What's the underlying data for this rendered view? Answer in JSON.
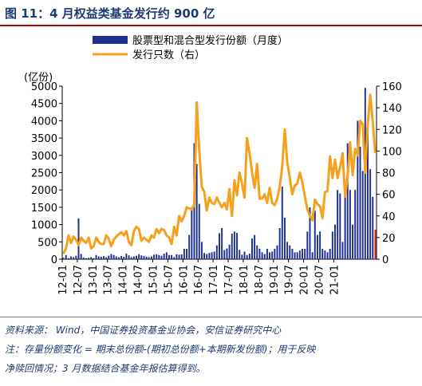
{
  "figure": {
    "title": "图 11：4 月权益类基金发行约 900 亿",
    "source": "资料来源：  Wind，中国证券投资基金业协会，安信证券研究中心",
    "note_line1": "注：存量份额变化 = 期末总份额-(期初总份额+本期新发份额)；用于反映",
    "note_line2": "净赎回情况；3 月数据结合基金年报估算得到。"
  },
  "colors": {
    "bar": "#1f2f8f",
    "bar_last": "#e0202a",
    "line": "#f5a11c",
    "title": "#1f3a73",
    "rule": "#c00000"
  },
  "chart_data": {
    "type": "bar",
    "title": "",
    "left_axis_label": "(亿份)",
    "ylim": [
      0,
      5000
    ],
    "y2lim": [
      0,
      160
    ],
    "yticks": [
      0,
      500,
      1000,
      1500,
      2000,
      2500,
      3000,
      3500,
      4000,
      4500,
      5000
    ],
    "y2ticks": [
      0,
      20,
      40,
      60,
      80,
      100,
      120,
      140,
      160
    ],
    "start": "2012-01",
    "x_tick_labels": [
      "12-01",
      "12-07",
      "13-01",
      "13-07",
      "14-01",
      "14-07",
      "15-01",
      "15-07",
      "16-01",
      "16-07",
      "17-01",
      "17-07",
      "18-01",
      "18-07",
      "19-01",
      "19-07",
      "20-01",
      "20-07",
      "21-01"
    ],
    "legend": {
      "position": "top-right",
      "bar_label": "股票型和混合型发行份额（月度）",
      "line_label": "发行只数（右）"
    },
    "series": [
      {
        "name": "股票型和混合型发行份额（月度）",
        "axis": "left",
        "values": [
          40,
          120,
          30,
          80,
          60,
          100,
          1180,
          150,
          50,
          30,
          40,
          60,
          30,
          120,
          80,
          70,
          90,
          60,
          100,
          150,
          120,
          80,
          60,
          90,
          70,
          160,
          110,
          60,
          80,
          100,
          140,
          110,
          90,
          70,
          60,
          80,
          130,
          140,
          120,
          100,
          160,
          200,
          120,
          120,
          60,
          140,
          130,
          140,
          300,
          300,
          700,
          1500,
          3350,
          2750,
          1600,
          500,
          180,
          150,
          180,
          200,
          220,
          400,
          750,
          900,
          260,
          310,
          420,
          740,
          800,
          760,
          270,
          130,
          220,
          120,
          160,
          600,
          700,
          400,
          300,
          200,
          150,
          300,
          200,
          220,
          300,
          400,
          900,
          2100,
          1200,
          500,
          400,
          300,
          200,
          200,
          250,
          300,
          300,
          800,
          1500,
          200,
          1400,
          700,
          800,
          300,
          250,
          200,
          300,
          800,
          1000,
          2000,
          1900,
          500,
          1800,
          3350,
          2000,
          1000,
          2000,
          4000,
          3250,
          2550,
          4950,
          4000,
          2600,
          1800,
          850
        ]
      },
      {
        "name": "发行只数（右）",
        "axis": "right",
        "values": [
          5,
          10,
          22,
          15,
          21,
          18,
          13,
          20,
          17,
          15,
          20,
          10,
          12,
          20,
          16,
          14,
          14,
          22,
          19,
          12,
          18,
          21,
          23,
          25,
          22,
          26,
          16,
          13,
          26,
          30,
          28,
          17,
          20,
          18,
          16,
          22,
          20,
          28,
          24,
          28,
          27,
          22,
          20,
          14,
          30,
          22,
          40,
          35,
          40,
          48,
          47,
          46,
          50,
          145,
          100,
          67,
          62,
          45,
          57,
          52,
          51,
          57,
          52,
          48,
          52,
          46,
          65,
          40,
          73,
          59,
          80,
          70,
          57,
          112,
          98,
          80,
          66,
          88,
          56,
          56,
          60,
          52,
          66,
          52,
          50,
          56,
          67,
          86,
          120,
          90,
          75,
          60,
          68,
          70,
          80,
          71,
          58,
          46,
          40,
          36,
          55,
          51,
          49,
          38,
          62,
          63,
          95,
          75,
          92,
          75,
          85,
          98,
          58,
          76,
          108,
          78,
          102,
          96,
          128,
          125,
          80,
          125,
          152,
          127,
          98
        ]
      }
    ]
  }
}
